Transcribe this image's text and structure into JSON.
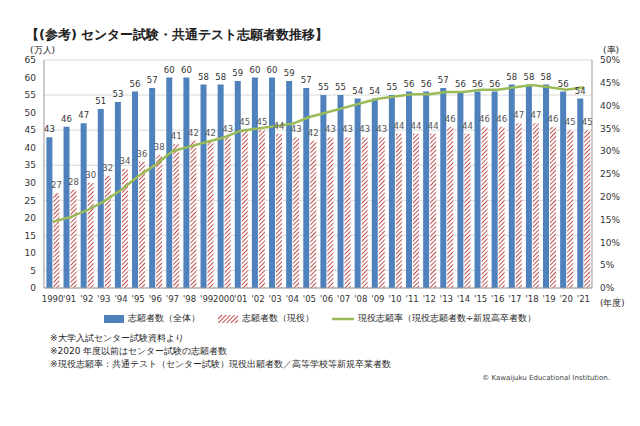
{
  "chart_data": {
    "type": "bar",
    "title": "【(参考) センター試験・共通テスト志願者数推移】",
    "y_label": "(万人)",
    "y2_label": "(率)",
    "x_label": "(年度)",
    "categories": [
      "1990",
      "'91",
      "'92",
      "'93",
      "'94",
      "'95",
      "'96",
      "'97",
      "'98",
      "'99",
      "2000",
      "'01",
      "'02",
      "'03",
      "'04",
      "'05",
      "'06",
      "'07",
      "'08",
      "'09",
      "'10",
      "'11",
      "'12",
      "'13",
      "'14",
      "'15",
      "'16",
      "'17",
      "'18",
      "'19",
      "'20",
      "'21"
    ],
    "series": [
      {
        "name": "志願者数（全体）",
        "type": "bar",
        "color": "#4f81bd",
        "data_labels": true,
        "values": [
          43,
          46,
          47,
          51,
          53,
          56,
          57,
          60,
          60,
          58,
          58,
          59,
          60,
          60,
          59,
          57,
          55,
          55,
          54,
          54,
          55,
          56,
          56,
          57,
          56,
          56,
          56,
          58,
          58,
          58,
          56,
          54
        ]
      },
      {
        "name": "志願者数（現役）",
        "type": "bar",
        "color": "#c0504d",
        "data_labels": true,
        "values": [
          27,
          28,
          30,
          32,
          34,
          36,
          38,
          41,
          42,
          42,
          43,
          45,
          45,
          44,
          43,
          42,
          43,
          43,
          43,
          43,
          44,
          44,
          44,
          46,
          44,
          46,
          46,
          47,
          47,
          46,
          45,
          45
        ]
      },
      {
        "name": "現役志願率（現役志願者数÷新規高卒者数）",
        "type": "line",
        "axis": "y2",
        "color": "#9bbb59",
        "marker": "none",
        "values": [
          14.5,
          15.5,
          17,
          19,
          21.5,
          24.5,
          27,
          30,
          31,
          32,
          33,
          34.5,
          35,
          35.5,
          36,
          37.5,
          38.5,
          39.5,
          40.5,
          41.5,
          42,
          42.5,
          42.5,
          43,
          43,
          43.5,
          43.5,
          44,
          44.5,
          44,
          43.5,
          44
        ]
      }
    ],
    "ylim": [
      0,
      65
    ],
    "yticks": [
      0,
      5,
      10,
      15,
      20,
      25,
      30,
      35,
      40,
      45,
      50,
      55,
      60,
      65
    ],
    "y2lim": [
      0,
      50
    ],
    "y2ticks": [
      {
        "value": 0,
        "label": "0%"
      },
      {
        "value": 5,
        "label": "5%"
      },
      {
        "value": 10,
        "label": "10%"
      },
      {
        "value": 15,
        "label": "15%"
      },
      {
        "value": 20,
        "label": "20%"
      },
      {
        "value": 25,
        "label": "25%"
      },
      {
        "value": 30,
        "label": "30%"
      },
      {
        "value": 35,
        "label": "35%"
      },
      {
        "value": 40,
        "label": "40%"
      },
      {
        "value": 45,
        "label": "45%"
      },
      {
        "value": 50,
        "label": "50%"
      }
    ],
    "grid": true,
    "legend": "bottom",
    "notes": [
      "※大学入試センター試験資料より",
      "※2020 年度以前はセンター試験の志願者数",
      "※現役志願率：共通テスト（センター試験）現役出願者数／高等学校等新規卒業者数"
    ],
    "copyright": "© Kawaijuku Educational Institution."
  }
}
